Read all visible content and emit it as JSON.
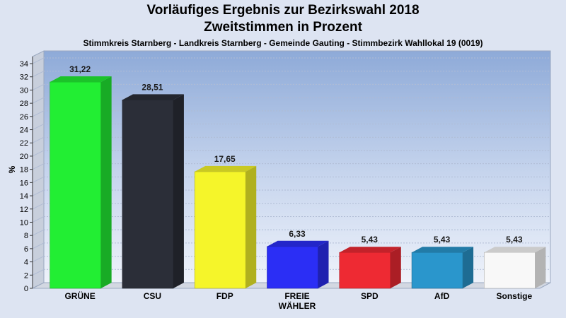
{
  "chart_data": {
    "type": "bar",
    "title": "Vorläufiges Ergebnis zur Bezirkswahl 2018",
    "subtitle": "Zweitstimmen in Prozent",
    "subtitle2": "Stimmkreis Starnberg - Landkreis Starnberg - Gemeinde Gauting - Stimmbezirk Wahllokal 19 (0019)",
    "ylabel": "%",
    "xlabel": "",
    "ylim": [
      0,
      34
    ],
    "yticks": [
      0,
      2,
      4,
      6,
      8,
      10,
      12,
      14,
      16,
      18,
      20,
      22,
      24,
      26,
      28,
      30,
      32,
      34
    ],
    "grid": true,
    "categories": [
      [
        "GRÜNE"
      ],
      [
        "CSU"
      ],
      [
        "FDP"
      ],
      [
        "FREIE",
        "WÄHLER"
      ],
      [
        "SPD"
      ],
      [
        "AfD"
      ],
      [
        "Sonstige"
      ]
    ],
    "values": [
      31.22,
      28.51,
      17.65,
      6.33,
      5.43,
      5.43,
      5.43
    ],
    "value_labels": [
      "31,22",
      "28,51",
      "17,65",
      "6,33",
      "5,43",
      "5,43",
      "5,43"
    ],
    "colors": [
      "#22ee33",
      "#2b2e38",
      "#f5f52a",
      "#2b2ef5",
      "#ee2a33",
      "#2a96cc",
      "#f8f8f8"
    ]
  }
}
